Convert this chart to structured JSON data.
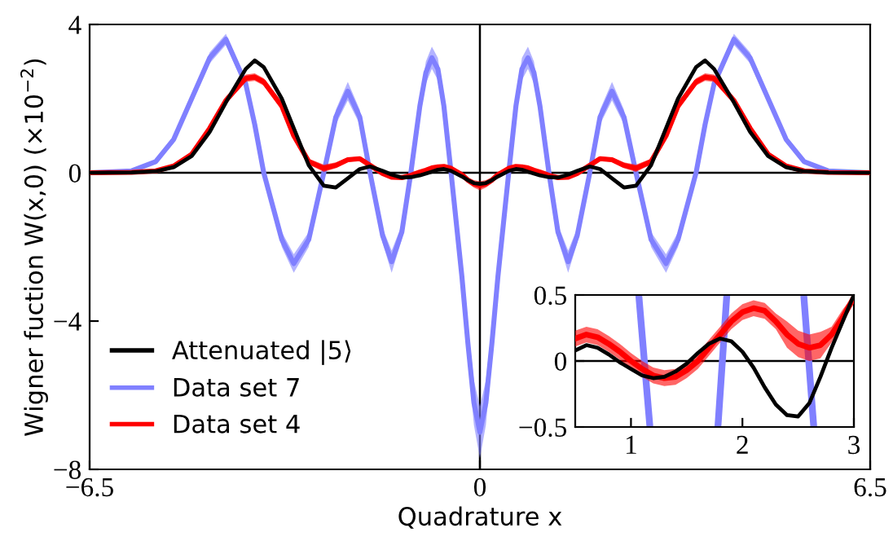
{
  "chart_data": [
    {
      "type": "line",
      "xlabel": "Quadrature x",
      "ylabel": "Wigner fuction W(x,0) (×10$^{−2}$)",
      "xlim": [
        -6.5,
        6.5
      ],
      "ylim": [
        -8,
        4
      ],
      "xticks": [
        {
          "value": -6.5,
          "label": "−6.5"
        },
        0,
        6.5
      ],
      "yticks": [
        4,
        0,
        {
          "value": -4,
          "label": "−4"
        },
        {
          "value": -8,
          "label": "−8"
        }
      ],
      "legend": "bottom left",
      "x": [
        -6.5,
        -5.8,
        -5.4,
        -5.1,
        -4.8,
        -4.5,
        -4.23,
        -3.9,
        -3.75,
        -3.6,
        -3.3,
        -3.1,
        -2.85,
        -2.6,
        -2.4,
        -2.2,
        -2.0,
        -1.83,
        -1.62,
        -1.47,
        -1.3,
        -1.15,
        -1.0,
        -0.9,
        -0.8,
        -0.7,
        -0.6,
        -0.48,
        -0.3,
        -0.2,
        -0.1,
        0,
        0.1,
        0.2,
        0.3,
        0.48,
        0.6,
        0.7,
        0.8,
        0.9,
        1.0,
        1.15,
        1.3,
        1.47,
        1.62,
        1.83,
        2.0,
        2.2,
        2.4,
        2.6,
        2.85,
        3.1,
        3.3,
        3.6,
        3.75,
        3.9,
        4.23,
        4.5,
        4.8,
        5.1,
        5.4,
        5.8,
        6.5
      ],
      "ref_lines": [
        {
          "axis": "y",
          "value": 0,
          "color": "#000000"
        },
        {
          "axis": "x",
          "value": 0,
          "color": "#000000"
        }
      ],
      "series": [
        {
          "name": "Data set 7",
          "color": "#8080ff",
          "values": [
            0,
            0.05,
            0.3,
            0.9,
            2.0,
            3.1,
            3.6,
            2.4,
            1.3,
            0,
            -1.8,
            -2.45,
            -1.8,
            0,
            1.5,
            2.2,
            1.5,
            0,
            -1.7,
            -2.4,
            -1.6,
            0,
            1.8,
            2.7,
            3.1,
            2.8,
            1.8,
            0,
            -2.8,
            -4.6,
            -6.2,
            -7.0,
            -6.2,
            -4.6,
            -2.8,
            0,
            1.8,
            2.8,
            3.1,
            2.7,
            1.8,
            0,
            -1.6,
            -2.4,
            -1.7,
            0,
            1.5,
            2.2,
            1.5,
            0,
            -1.8,
            -2.45,
            -1.8,
            0,
            1.3,
            2.4,
            3.6,
            3.1,
            2.0,
            0.9,
            0.3,
            0.05,
            0
          ],
          "lower": [
            0,
            0.03,
            0.25,
            0.8,
            1.88,
            2.95,
            3.45,
            2.25,
            1.15,
            -0.1,
            -2.0,
            -2.7,
            -2.0,
            -0.1,
            1.3,
            1.95,
            1.3,
            -0.1,
            -1.9,
            -2.7,
            -1.8,
            -0.1,
            1.6,
            2.4,
            2.8,
            2.5,
            1.6,
            -0.1,
            -3.1,
            -5.05,
            -6.8,
            -7.7,
            -6.8,
            -5.05,
            -3.1,
            -0.1,
            1.6,
            2.5,
            2.8,
            2.4,
            1.6,
            -0.1,
            -1.8,
            -2.7,
            -1.9,
            -0.1,
            1.3,
            1.95,
            1.3,
            -0.1,
            -2.0,
            -2.7,
            -2.0,
            -0.1,
            1.15,
            2.25,
            3.45,
            2.95,
            1.88,
            0.8,
            0.25,
            0.03,
            0
          ],
          "upper": [
            0,
            0.07,
            0.35,
            1.0,
            2.12,
            3.25,
            3.75,
            2.55,
            1.45,
            0.1,
            -1.6,
            -2.2,
            -1.6,
            0.1,
            1.7,
            2.45,
            1.7,
            0.1,
            -1.5,
            -2.1,
            -1.4,
            0.1,
            2.0,
            3.0,
            3.4,
            3.1,
            2.0,
            0.1,
            -2.5,
            -4.15,
            -5.6,
            -6.3,
            -5.6,
            -4.15,
            -2.5,
            0.1,
            2.0,
            3.1,
            3.4,
            3.0,
            2.0,
            0.1,
            -1.4,
            -2.1,
            -1.5,
            0.1,
            1.7,
            2.45,
            1.7,
            0.1,
            -1.6,
            -2.2,
            -1.6,
            0.1,
            1.45,
            2.55,
            3.75,
            3.25,
            2.12,
            1.0,
            0.35,
            0.07,
            0
          ]
        },
        {
          "name": "Data set 4",
          "color": "#ff0000",
          "values": [
            0,
            0.01,
            0.05,
            0.18,
            0.5,
            1.2,
            1.95,
            2.55,
            2.58,
            2.45,
            1.8,
            1.0,
            0.3,
            0.12,
            0.2,
            0.35,
            0.38,
            0.2,
            -0.02,
            -0.12,
            -0.13,
            -0.07,
            0.02,
            0.07,
            0.13,
            0.16,
            0.17,
            0.12,
            -0.05,
            -0.2,
            -0.3,
            -0.35,
            -0.3,
            -0.2,
            -0.05,
            0.12,
            0.17,
            0.16,
            0.13,
            0.07,
            0.02,
            -0.07,
            -0.13,
            -0.12,
            -0.02,
            0.2,
            0.38,
            0.35,
            0.2,
            0.12,
            0.3,
            1.0,
            1.8,
            2.45,
            2.58,
            2.55,
            1.95,
            1.2,
            0.5,
            0.18,
            0.05,
            0.01,
            0
          ],
          "lower": [
            0,
            0,
            0.03,
            0.15,
            0.45,
            1.12,
            1.85,
            2.45,
            2.48,
            2.35,
            1.7,
            0.92,
            0.22,
            0.02,
            0.12,
            0.29,
            0.33,
            0.15,
            -0.07,
            -0.17,
            -0.18,
            -0.12,
            -0.03,
            0.02,
            0.08,
            0.11,
            0.12,
            0.07,
            -0.11,
            -0.28,
            -0.4,
            -0.47,
            -0.4,
            -0.28,
            -0.11,
            0.07,
            0.12,
            0.11,
            0.08,
            0.02,
            -0.03,
            -0.12,
            -0.18,
            -0.17,
            -0.07,
            0.15,
            0.33,
            0.29,
            0.12,
            0.02,
            0.22,
            0.92,
            1.7,
            2.35,
            2.48,
            2.45,
            1.85,
            1.12,
            0.45,
            0.15,
            0.03,
            0,
            0
          ],
          "upper": [
            0,
            0.02,
            0.07,
            0.21,
            0.55,
            1.28,
            2.05,
            2.65,
            2.68,
            2.55,
            1.9,
            1.08,
            0.38,
            0.22,
            0.28,
            0.41,
            0.43,
            0.25,
            0.03,
            -0.07,
            -0.08,
            -0.02,
            0.07,
            0.12,
            0.18,
            0.21,
            0.22,
            0.17,
            0.01,
            -0.12,
            -0.2,
            -0.23,
            -0.2,
            -0.12,
            0.01,
            0.17,
            0.22,
            0.21,
            0.18,
            0.12,
            0.07,
            -0.02,
            -0.08,
            -0.07,
            0.03,
            0.25,
            0.43,
            0.41,
            0.28,
            0.22,
            0.38,
            1.08,
            1.9,
            2.55,
            2.68,
            2.65,
            2.05,
            1.28,
            0.55,
            0.21,
            0.07,
            0.02,
            0
          ]
        },
        {
          "name": "Attenuated |5⟩",
          "color": "#000000",
          "values": [
            0,
            0.01,
            0.04,
            0.15,
            0.45,
            1.1,
            1.9,
            2.8,
            3.03,
            2.85,
            2.0,
            1.2,
            0.2,
            -0.35,
            -0.4,
            -0.15,
            0.1,
            0.17,
            0.05,
            -0.05,
            -0.13,
            -0.12,
            -0.07,
            -0.02,
            0.03,
            0.08,
            0.1,
            0.05,
            -0.1,
            -0.2,
            -0.28,
            -0.3,
            -0.28,
            -0.2,
            -0.1,
            0.05,
            0.1,
            0.08,
            0.03,
            -0.02,
            -0.07,
            -0.12,
            -0.13,
            -0.05,
            0.05,
            0.17,
            0.1,
            -0.15,
            -0.4,
            -0.35,
            0.2,
            1.2,
            2.0,
            2.85,
            3.03,
            2.8,
            1.9,
            1.1,
            0.45,
            0.15,
            0.04,
            0.01,
            0
          ]
        }
      ]
    },
    {
      "type": "line",
      "xlim": [
        0.5,
        3
      ],
      "ylim": [
        -0.5,
        0.5
      ],
      "xticks": [
        1,
        2,
        3
      ],
      "yticks": [
        0.5,
        0,
        {
          "value": -0.5,
          "label": "−0.5"
        }
      ],
      "x": [
        0.5,
        0.6,
        0.7,
        0.8,
        0.9,
        1.0,
        1.1,
        1.2,
        1.3,
        1.4,
        1.5,
        1.6,
        1.7,
        1.8,
        1.9,
        2.0,
        2.1,
        2.2,
        2.3,
        2.4,
        2.5,
        2.6,
        2.7,
        2.8,
        2.9,
        3.0
      ],
      "ref_lines": [
        {
          "axis": "y",
          "value": 0,
          "color": "#000000"
        }
      ],
      "series": [
        {
          "color": "#8080ff",
          "x": [
            1.07,
            1.17,
            1.4,
            1.78,
            1.86,
            2.2,
            2.55,
            2.64
          ],
          "values": [
            0.5,
            -0.5,
            null,
            -0.5,
            0.5,
            null,
            0.5,
            -0.5
          ]
        },
        {
          "color": "#ff0000",
          "values": [
            0.17,
            0.2,
            0.18,
            0.13,
            0.07,
            0.0,
            -0.06,
            -0.11,
            -0.13,
            -0.12,
            -0.07,
            0.0,
            0.1,
            0.2,
            0.3,
            0.37,
            0.4,
            0.38,
            0.3,
            0.2,
            0.13,
            0.1,
            0.12,
            0.2,
            0.33,
            0.48
          ],
          "lower": [
            0.11,
            0.14,
            0.12,
            0.07,
            0.01,
            -0.06,
            -0.12,
            -0.17,
            -0.19,
            -0.18,
            -0.13,
            -0.06,
            0.04,
            0.14,
            0.24,
            0.31,
            0.34,
            0.32,
            0.24,
            0.1,
            0.03,
            0.0,
            0.02,
            0.14,
            0.27,
            0.46
          ],
          "upper": [
            0.23,
            0.26,
            0.24,
            0.19,
            0.13,
            0.06,
            0.0,
            -0.05,
            -0.07,
            -0.06,
            -0.01,
            0.06,
            0.16,
            0.26,
            0.36,
            0.43,
            0.46,
            0.44,
            0.36,
            0.3,
            0.23,
            0.2,
            0.22,
            0.26,
            0.39,
            0.5
          ]
        },
        {
          "color": "#000000",
          "values": [
            0.08,
            0.12,
            0.1,
            0.05,
            -0.01,
            -0.06,
            -0.11,
            -0.13,
            -0.12,
            -0.08,
            -0.02,
            0.06,
            0.13,
            0.17,
            0.15,
            0.07,
            -0.05,
            -0.2,
            -0.33,
            -0.41,
            -0.42,
            -0.32,
            -0.12,
            0.1,
            0.3,
            0.5
          ]
        }
      ]
    }
  ]
}
